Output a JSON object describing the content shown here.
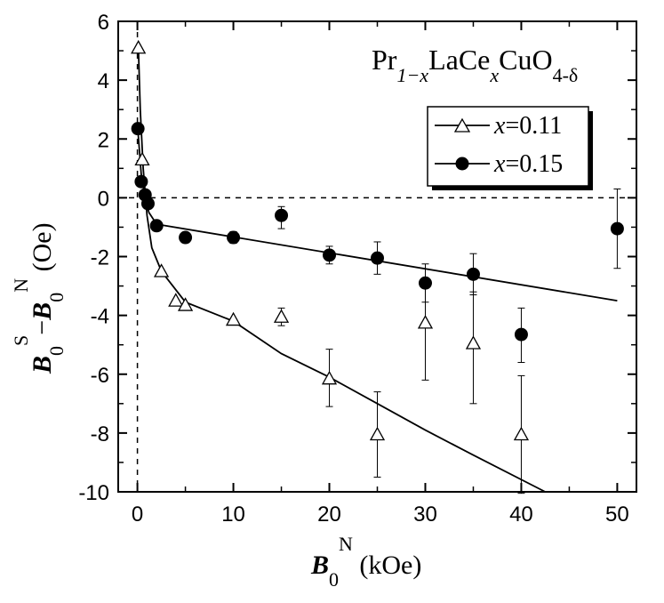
{
  "chart_data": {
    "type": "scatter",
    "xlim": [
      -2,
      52
    ],
    "ylim": [
      -10,
      6
    ],
    "xticks": [
      0,
      10,
      20,
      30,
      40,
      50
    ],
    "yticks": [
      6,
      4,
      2,
      0,
      -2,
      -4,
      -6,
      -8,
      -10
    ],
    "xlabel": {
      "main": "B",
      "sub": "0",
      "sup": "N",
      "unit": " (kOe)"
    },
    "ylabel": {
      "a_main": "B",
      "a_sub": "0",
      "a_sup": "S",
      "minus": "−",
      "b_main": "B",
      "b_sub": "0",
      "b_sup": "N",
      "unit": " (Oe)"
    },
    "formula": {
      "pr": "Pr",
      "sub1": "1−x",
      "lace": "LaCe",
      "sub2": "x",
      "cuo": "CuO",
      "sub3": "4-δ"
    },
    "legend": [
      {
        "var": "x",
        "value": "=0.11"
      },
      {
        "var": "x",
        "value": "=0.15"
      }
    ],
    "series": [
      {
        "name": "x=0.11",
        "marker": "open-triangle",
        "points": [
          {
            "x": 0.1,
            "y": 5.1
          },
          {
            "x": 0.5,
            "y": 1.3
          },
          {
            "x": 2.5,
            "y": -2.5
          },
          {
            "x": 4,
            "y": -3.5
          },
          {
            "x": 5,
            "y": -3.65
          },
          {
            "x": 10,
            "y": -4.15
          },
          {
            "x": 15,
            "y": -4.05,
            "err": [
              0.3,
              0.3
            ]
          },
          {
            "x": 20,
            "y": -6.15,
            "err": [
              0.95,
              1.0
            ]
          },
          {
            "x": 25,
            "y": -8.05,
            "err": [
              1.45,
              1.45
            ]
          },
          {
            "x": 30,
            "y": -4.25,
            "err": [
              1.95,
              1.45
            ]
          },
          {
            "x": 35,
            "y": -4.95,
            "err": [
              2.05,
              1.75
            ]
          },
          {
            "x": 40,
            "y": -8.05,
            "err": [
              2.0,
              2.0
            ]
          }
        ],
        "fit": [
          {
            "x": 0.1,
            "y": 5.1
          },
          {
            "x": 0.3,
            "y": 3.0
          },
          {
            "x": 0.6,
            "y": 1.0
          },
          {
            "x": 1.0,
            "y": -0.6
          },
          {
            "x": 1.5,
            "y": -1.7
          },
          {
            "x": 2.5,
            "y": -2.5
          },
          {
            "x": 5.0,
            "y": -3.55
          },
          {
            "x": 10,
            "y": -4.2
          },
          {
            "x": 15,
            "y": -5.3
          },
          {
            "x": 20,
            "y": -6.1
          },
          {
            "x": 25,
            "y": -7.0
          },
          {
            "x": 30,
            "y": -7.9
          },
          {
            "x": 35,
            "y": -8.75
          },
          {
            "x": 42.5,
            "y": -10.0
          }
        ]
      },
      {
        "name": "x=0.15",
        "marker": "filled-circle",
        "points": [
          {
            "x": 0.05,
            "y": 2.35
          },
          {
            "x": 0.4,
            "y": 0.55
          },
          {
            "x": 0.8,
            "y": 0.1
          },
          {
            "x": 1.1,
            "y": -0.2
          },
          {
            "x": 2,
            "y": -0.95
          },
          {
            "x": 5,
            "y": -1.35
          },
          {
            "x": 10,
            "y": -1.35,
            "err": [
              0.2,
              0.2
            ]
          },
          {
            "x": 15,
            "y": -0.6,
            "err": [
              0.45,
              0.3
            ]
          },
          {
            "x": 20,
            "y": -1.95,
            "err": [
              0.3,
              0.3
            ]
          },
          {
            "x": 25,
            "y": -2.05,
            "err": [
              0.55,
              0.55
            ]
          },
          {
            "x": 30,
            "y": -2.9,
            "err": [
              0.65,
              0.65
            ]
          },
          {
            "x": 35,
            "y": -2.6,
            "err": [
              0.7,
              0.7
            ]
          },
          {
            "x": 40,
            "y": -4.65,
            "err": [
              0.95,
              0.9
            ]
          },
          {
            "x": 50,
            "y": -1.05,
            "err": [
              1.35,
              1.35
            ]
          }
        ],
        "fit": [
          {
            "x": 0.05,
            "y": 2.3
          },
          {
            "x": 0.4,
            "y": 0.8
          },
          {
            "x": 0.8,
            "y": 0.0
          },
          {
            "x": 1.2,
            "y": -0.5
          },
          {
            "x": 2.0,
            "y": -0.9
          },
          {
            "x": 50,
            "y": -3.5
          }
        ]
      }
    ]
  },
  "colors": {
    "ink": "#000000",
    "background": "#ffffff",
    "grid_dash": "#000000"
  }
}
